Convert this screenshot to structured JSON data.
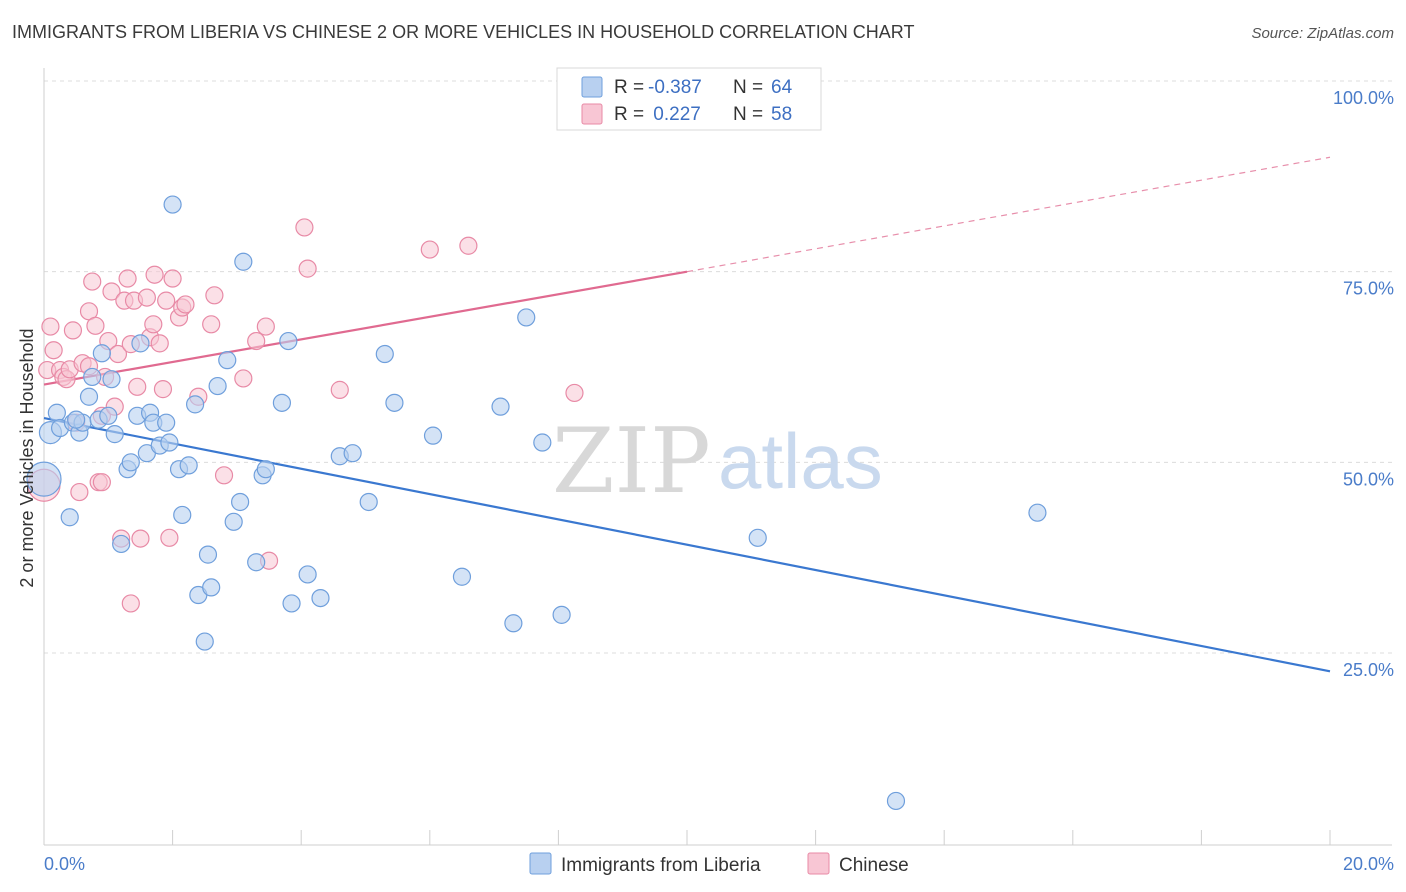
{
  "title": "IMMIGRANTS FROM LIBERIA VS CHINESE 2 OR MORE VEHICLES IN HOUSEHOLD CORRELATION CHART",
  "source": "Source: ZipAtlas.com",
  "watermark": {
    "zip": "ZIP",
    "atlas": "atlas"
  },
  "colors": {
    "blue_fill": "#b8d0f0",
    "blue_stroke": "#6f9fdc",
    "blue_line": "#3a78d0",
    "pink_fill": "#f8c6d4",
    "pink_stroke": "#e88aa6",
    "pink_line": "#e06a90",
    "tick_text": "#4a7cc9",
    "grid": "#dcdcdc"
  },
  "legend": {
    "rows": [
      {
        "r_label": "R =",
        "r_value": "-0.387",
        "n_label": "N =",
        "n_value": "64"
      },
      {
        "r_label": "R =",
        "r_value": " 0.227",
        "n_label": "N =",
        "n_value": "58"
      }
    ]
  },
  "bottom_legend": [
    "Immigrants from Liberia",
    "Chinese"
  ],
  "chart_data": {
    "type": "scatter",
    "xlabel": "",
    "ylabel": "2 or more Vehicles in Household",
    "xlim": [
      0,
      20
    ],
    "ylim": [
      0,
      105
    ],
    "x_tick_labels": [
      "0.0%",
      "20.0%"
    ],
    "y_ticks": [
      25,
      50,
      75,
      100
    ],
    "y_tick_labels": [
      "25.0%",
      "50.0%",
      "75.0%",
      "100.0%"
    ],
    "grid": true,
    "legend_position": "top-center",
    "series": [
      {
        "name": "Immigrants from Liberia",
        "color": "#6f9fdc",
        "r": -0.387,
        "n": 64,
        "trend": {
          "x": [
            0,
            20
          ],
          "y": [
            55.8,
            22.6
          ],
          "style": "solid"
        },
        "points": [
          [
            0.0,
            47.8
          ],
          [
            0.1,
            53.9
          ],
          [
            0.2,
            56.5
          ],
          [
            0.25,
            54.5
          ],
          [
            0.4,
            42.8
          ],
          [
            0.45,
            55.2
          ],
          [
            0.55,
            53.9
          ],
          [
            0.6,
            55.2
          ],
          [
            0.7,
            58.6
          ],
          [
            0.75,
            61.2
          ],
          [
            0.85,
            55.6
          ],
          [
            0.9,
            64.3
          ],
          [
            1.0,
            56.1
          ],
          [
            1.05,
            60.9
          ],
          [
            1.1,
            53.7
          ],
          [
            1.2,
            39.3
          ],
          [
            1.3,
            49.1
          ],
          [
            1.35,
            50.0
          ],
          [
            1.45,
            56.1
          ],
          [
            1.5,
            65.6
          ],
          [
            1.6,
            51.2
          ],
          [
            1.65,
            56.5
          ],
          [
            1.7,
            55.2
          ],
          [
            1.8,
            52.2
          ],
          [
            1.9,
            55.2
          ],
          [
            1.95,
            52.6
          ],
          [
            2.0,
            83.8
          ],
          [
            2.1,
            49.1
          ],
          [
            2.15,
            43.1
          ],
          [
            2.25,
            49.6
          ],
          [
            2.35,
            57.6
          ],
          [
            2.4,
            32.6
          ],
          [
            2.5,
            26.5
          ],
          [
            2.55,
            37.9
          ],
          [
            2.6,
            33.6
          ],
          [
            2.7,
            60.0
          ],
          [
            2.85,
            63.4
          ],
          [
            2.95,
            42.2
          ],
          [
            3.05,
            44.8
          ],
          [
            3.1,
            76.3
          ],
          [
            3.3,
            36.9
          ],
          [
            3.4,
            48.3
          ],
          [
            3.45,
            49.1
          ],
          [
            3.7,
            57.8
          ],
          [
            3.8,
            65.9
          ],
          [
            3.85,
            31.5
          ],
          [
            4.1,
            35.3
          ],
          [
            4.3,
            32.2
          ],
          [
            4.6,
            50.8
          ],
          [
            4.8,
            51.2
          ],
          [
            5.05,
            44.8
          ],
          [
            5.3,
            64.2
          ],
          [
            5.45,
            57.8
          ],
          [
            6.05,
            53.5
          ],
          [
            6.5,
            35.0
          ],
          [
            7.1,
            57.3
          ],
          [
            7.3,
            28.9
          ],
          [
            7.5,
            69.0
          ],
          [
            7.75,
            52.6
          ],
          [
            8.05,
            30.0
          ],
          [
            11.1,
            40.1
          ],
          [
            13.25,
            5.6
          ],
          [
            15.45,
            43.4
          ],
          [
            0.5,
            55.6
          ]
        ]
      },
      {
        "name": "Chinese",
        "color": "#e88aa6",
        "r": 0.227,
        "n": 58,
        "trend": {
          "x": [
            0,
            10
          ],
          "y": [
            60.2,
            75.0
          ],
          "style": "solid",
          "dashed_to": {
            "x": 20,
            "y": 90.0
          }
        },
        "points": [
          [
            0.0,
            47.0
          ],
          [
            0.05,
            62.1
          ],
          [
            0.1,
            67.8
          ],
          [
            0.15,
            64.7
          ],
          [
            0.25,
            62.1
          ],
          [
            0.3,
            61.2
          ],
          [
            0.35,
            60.9
          ],
          [
            0.4,
            62.2
          ],
          [
            0.45,
            67.3
          ],
          [
            0.5,
            55.2
          ],
          [
            0.55,
            46.1
          ],
          [
            0.6,
            63.0
          ],
          [
            0.7,
            62.6
          ],
          [
            0.7,
            69.8
          ],
          [
            0.75,
            73.7
          ],
          [
            0.8,
            67.9
          ],
          [
            0.85,
            47.4
          ],
          [
            0.9,
            56.1
          ],
          [
            0.95,
            61.2
          ],
          [
            0.9,
            47.4
          ],
          [
            1.0,
            65.9
          ],
          [
            1.05,
            72.4
          ],
          [
            1.1,
            57.3
          ],
          [
            1.15,
            64.2
          ],
          [
            1.2,
            40.0
          ],
          [
            1.25,
            71.2
          ],
          [
            1.3,
            74.1
          ],
          [
            1.35,
            65.5
          ],
          [
            1.4,
            71.2
          ],
          [
            1.35,
            31.5
          ],
          [
            1.45,
            59.9
          ],
          [
            1.5,
            40.0
          ],
          [
            1.6,
            71.6
          ],
          [
            1.65,
            66.4
          ],
          [
            1.7,
            68.1
          ],
          [
            1.72,
            74.6
          ],
          [
            1.8,
            65.6
          ],
          [
            1.85,
            59.6
          ],
          [
            1.9,
            71.2
          ],
          [
            1.95,
            40.1
          ],
          [
            2.0,
            74.1
          ],
          [
            2.1,
            69.0
          ],
          [
            2.15,
            70.3
          ],
          [
            2.2,
            70.7
          ],
          [
            2.4,
            58.6
          ],
          [
            2.6,
            68.1
          ],
          [
            2.65,
            71.9
          ],
          [
            2.8,
            48.3
          ],
          [
            3.1,
            61.0
          ],
          [
            3.3,
            65.9
          ],
          [
            3.45,
            67.8
          ],
          [
            3.5,
            37.1
          ],
          [
            4.05,
            80.8
          ],
          [
            4.1,
            75.4
          ],
          [
            4.6,
            59.5
          ],
          [
            6.0,
            77.9
          ],
          [
            6.6,
            78.4
          ],
          [
            8.25,
            59.1
          ]
        ]
      }
    ]
  }
}
